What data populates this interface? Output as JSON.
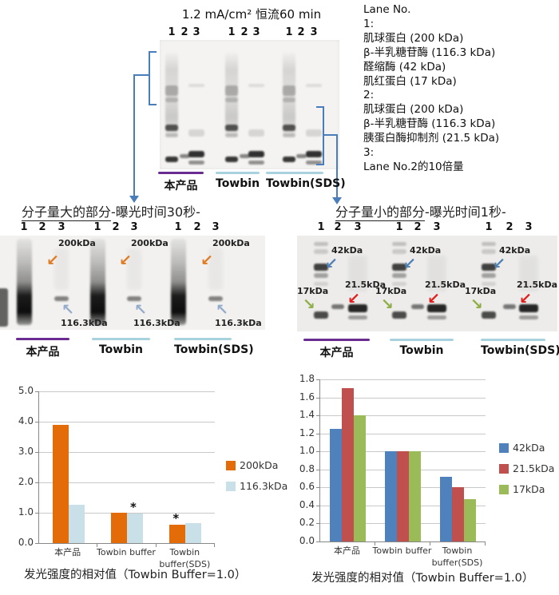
{
  "top": {
    "title": "1.2 mA/cm² 恒流60 min",
    "lane_numbers": [
      "1",
      "2",
      "3"
    ],
    "lane_legend": {
      "title": "Lane No.",
      "lines": [
        "1:",
        "肌球蛋白 (200 kDa)",
        "β-半乳糖苷酶 (116.3 kDa)",
        "醛缩酶 (42 kDa)",
        "肌红蛋白 (17 kDa)",
        "2:",
        "肌球蛋白 (200 kDa)",
        "β-半乳糖苷酶 (116.3 kDa)",
        "胰蛋白酶抑制剂 (21.5 kDa)",
        "3:",
        "Lane No.2的10倍量"
      ]
    },
    "groups": [
      {
        "label": "本产品",
        "bar_color": "#6B2C91"
      },
      {
        "label": "Towbin",
        "bar_color": "#A8D3DE"
      },
      {
        "label": "Towbin(SDS)",
        "bar_color": "#A8D3DE"
      }
    ]
  },
  "section_large": {
    "heading_underlined": "分子量大的部分",
    "heading_rest": "-曝光时间30秒-",
    "marker_200": "200kDa",
    "marker_116": "116.3kDa"
  },
  "section_small": {
    "heading_underlined": "分子量小的部分",
    "heading_rest": "-曝光时间1秒-",
    "marker_42": "42kDa",
    "marker_21": "21.5kDa",
    "marker_17": "17kDa"
  },
  "colors": {
    "connector_blue": "#4a7ebb",
    "purple_bar": "#6B2C91",
    "lightblue_bar": "#A8D3DE"
  },
  "chart_data": [
    {
      "type": "bar",
      "categories": [
        "本产品",
        "Towbin buffer",
        "Towbin buffer(SDS)"
      ],
      "series": [
        {
          "name": "200kDa",
          "color": "#E36C09",
          "values": [
            3.9,
            1.0,
            0.6
          ]
        },
        {
          "name": "116.3kDa",
          "color": "#C9E0E8",
          "values": [
            1.27,
            0.98,
            0.65
          ]
        }
      ],
      "title": "发光强度的相对值（Towbin Buffer=1.0）",
      "xlabel": "",
      "ylabel": "",
      "ylim": [
        0,
        5.0
      ],
      "ytick_step": 1.0,
      "grid": true,
      "legend_position": "right",
      "annotations": [
        {
          "text": "*",
          "category": 1,
          "series": 1
        },
        {
          "text": "*",
          "category": 2,
          "series": 0
        }
      ]
    },
    {
      "type": "bar",
      "categories": [
        "本产品",
        "Towbin buffer",
        "Towbin buffer(SDS)"
      ],
      "series": [
        {
          "name": "42kDa",
          "color": "#4F81BD",
          "values": [
            1.25,
            1.0,
            0.72
          ]
        },
        {
          "name": "21.5kDa",
          "color": "#C0504D",
          "values": [
            1.7,
            1.0,
            0.6
          ]
        },
        {
          "name": "17kDa",
          "color": "#9BBB59",
          "values": [
            1.4,
            1.0,
            0.47
          ]
        }
      ],
      "title": "发光强度的相对值（Towbin Buffer=1.0）",
      "xlabel": "",
      "ylabel": "",
      "ylim": [
        0,
        1.8
      ],
      "ytick_step": 0.2,
      "grid": true,
      "legend_position": "right",
      "annotations": []
    }
  ]
}
